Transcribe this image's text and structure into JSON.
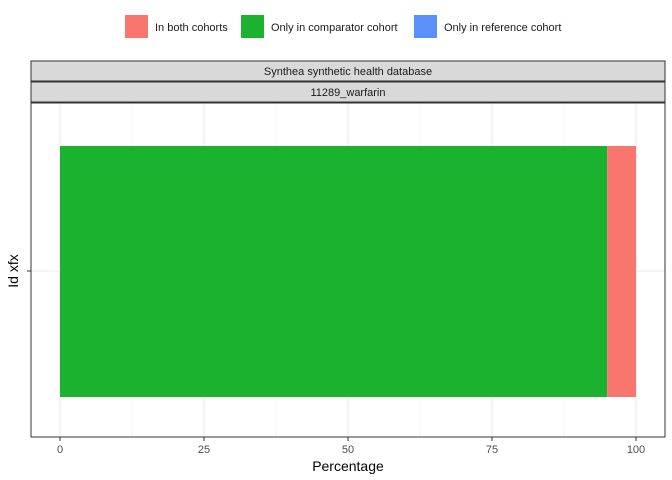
{
  "legend": {
    "items": [
      {
        "label": "In both cohorts",
        "color": "#F8766D"
      },
      {
        "label": "Only in comparator cohort",
        "color": "#1AB22E"
      },
      {
        "label": "Only in reference cohort",
        "color": "#5B8FF9"
      }
    ]
  },
  "facets": {
    "database": "Synthea synthetic health database",
    "cohort": "11289_warfarin"
  },
  "chart_data": {
    "type": "bar",
    "orientation": "horizontal",
    "stacked": true,
    "categories": [
      ""
    ],
    "series": [
      {
        "name": "Only in comparator cohort",
        "color": "#1AB22E",
        "values": [
          95
        ]
      },
      {
        "name": "In both cohorts",
        "color": "#F8766D",
        "values": [
          5
        ]
      },
      {
        "name": "Only in reference cohort",
        "color": "#5B8FF9",
        "values": [
          0
        ]
      }
    ],
    "xlabel": "Percentage",
    "ylabel": "Id xfx",
    "xlim": [
      0,
      100
    ],
    "xticks": [
      0,
      25,
      50,
      75,
      100
    ],
    "grid": true,
    "legend_position": "top"
  }
}
